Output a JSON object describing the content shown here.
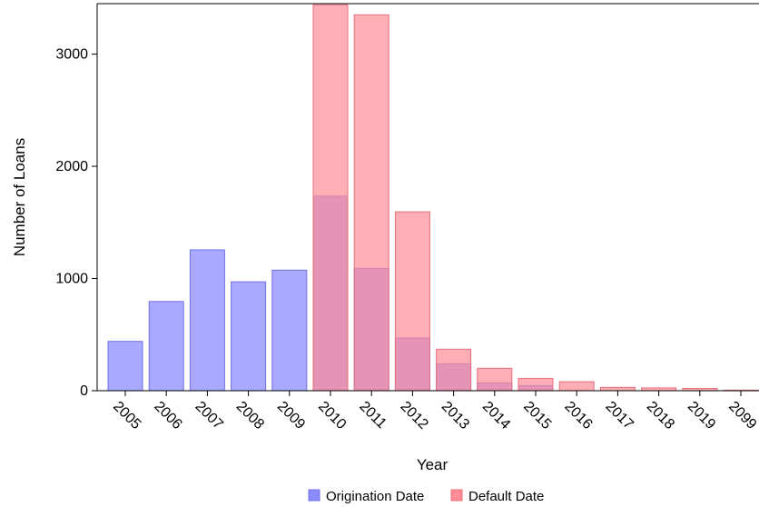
{
  "chart_data": {
    "type": "bar",
    "title": "",
    "xlabel": "Year",
    "ylabel": "Number of Loans",
    "categories": [
      "2005",
      "2006",
      "2007",
      "2008",
      "2009",
      "2010",
      "2011",
      "2012",
      "2013",
      "2014",
      "2015",
      "2016",
      "2017",
      "2018",
      "2019",
      "2099"
    ],
    "series": [
      {
        "name": "Origination Date",
        "color": "#8c8cff",
        "values": [
          440,
          795,
          1255,
          970,
          1075,
          1735,
          1090,
          470,
          240,
          70,
          45,
          0,
          0,
          0,
          0,
          0
        ]
      },
      {
        "name": "Default Date",
        "color": "#ff8c96",
        "values": [
          0,
          0,
          0,
          0,
          0,
          3440,
          3350,
          1595,
          370,
          200,
          110,
          80,
          30,
          25,
          20,
          5
        ]
      }
    ],
    "overlay": true,
    "ylim": [
      0,
      3450
    ],
    "yticks": [
      0,
      1000,
      2000,
      3000
    ],
    "grid": false,
    "legend": "bottom"
  }
}
